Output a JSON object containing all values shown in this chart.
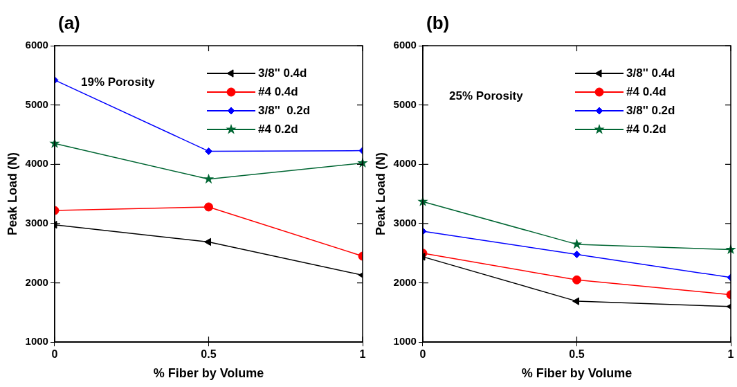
{
  "chart_data": [
    {
      "type": "line",
      "title": "(a)",
      "xlabel": "% Fiber by Volume",
      "ylabel": "Peak Load (N)",
      "x": [
        0,
        0.5,
        1
      ],
      "xlim": [
        0,
        1
      ],
      "xticks": [
        0,
        0.5,
        1
      ],
      "ylim": [
        1000,
        6000
      ],
      "yticks": [
        1000,
        2000,
        3000,
        4000,
        5000,
        6000
      ],
      "grid": false,
      "legend": "top right",
      "annotations": [
        "19% Porosity"
      ],
      "series": [
        {
          "name": "3/8'' 0.4d",
          "color": "#000000",
          "marker": "triangle",
          "values": [
            2980,
            2690,
            2130
          ]
        },
        {
          "name": "#4 0.4d",
          "color": "#ff0000",
          "marker": "circle",
          "values": [
            3220,
            3280,
            2450
          ]
        },
        {
          "name": "3/8''  0.2d",
          "color": "#0000ff",
          "marker": "diamond",
          "values": [
            5420,
            4220,
            4230
          ]
        },
        {
          "name": "#4 0.2d",
          "color": "#006633",
          "marker": "star",
          "values": [
            4350,
            3750,
            4020
          ]
        }
      ]
    },
    {
      "type": "line",
      "title": "(b)",
      "xlabel": "% Fiber by Volume",
      "ylabel": "Peak Load (N)",
      "x": [
        0,
        0.5,
        1
      ],
      "xlim": [
        0,
        1
      ],
      "xticks": [
        0,
        0.5,
        1
      ],
      "ylim": [
        1000,
        6000
      ],
      "yticks": [
        1000,
        2000,
        3000,
        4000,
        5000,
        6000
      ],
      "grid": false,
      "legend": "top right",
      "annotations": [
        "25% Porosity"
      ],
      "series": [
        {
          "name": "3/8'' 0.4d",
          "color": "#000000",
          "marker": "triangle",
          "values": [
            2440,
            1690,
            1600
          ]
        },
        {
          "name": "#4 0.4d",
          "color": "#ff0000",
          "marker": "circle",
          "values": [
            2500,
            2050,
            1800
          ]
        },
        {
          "name": "3/8'' 0.2d",
          "color": "#0000ff",
          "marker": "diamond",
          "values": [
            2870,
            2480,
            2090
          ]
        },
        {
          "name": "#4 0.2d",
          "color": "#006633",
          "marker": "star",
          "values": [
            3370,
            2650,
            2560
          ]
        }
      ]
    }
  ]
}
